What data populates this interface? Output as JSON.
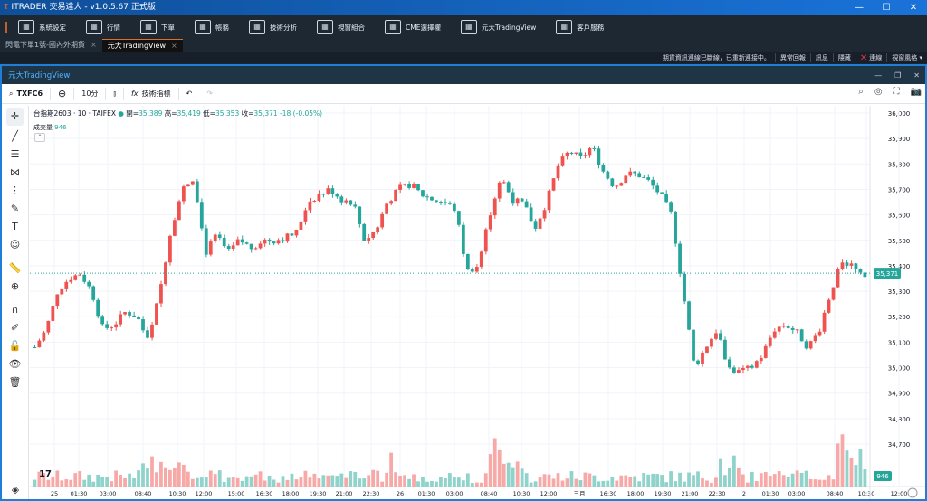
{
  "window": {
    "title": "ITRADER 交易達人 - v1.0.5.67 正式版"
  },
  "menu": [
    {
      "label": "系統設定",
      "icon": "gear-icon"
    },
    {
      "label": "行情",
      "icon": "monitor-chart-icon"
    },
    {
      "label": "下單",
      "icon": "order-icon"
    },
    {
      "label": "帳務",
      "icon": "calculator-icon"
    },
    {
      "label": "技術分析",
      "icon": "magnifier-chart-icon"
    },
    {
      "label": "視窗組合",
      "icon": "window-add-icon"
    },
    {
      "label": "CME選擇權",
      "icon": "bar-chart-icon"
    },
    {
      "label": "元大TradingView",
      "icon": "tradingview-icon"
    },
    {
      "label": "客戶服務",
      "icon": "help-chat-icon"
    }
  ],
  "tabs": [
    {
      "label": "閃電下單1號-國內外期貨"
    },
    {
      "label": "元大TradingView"
    }
  ],
  "status": {
    "message": "期貨資訊連線已斷線，已重新連接中。",
    "report": "異常回報",
    "info": "訊息",
    "hide": "隱藏",
    "connect": "連線",
    "style": "視窗風格 ▾"
  },
  "panel": {
    "title": "元大TradingView"
  },
  "toolbar": {
    "symbol": "TXFC6",
    "interval": "10分",
    "indicators": "技術指標"
  },
  "legend": {
    "name": "台指期2603 · 10 · TAIFEX",
    "open_label": "開",
    "open": "35,389",
    "high_label": "高",
    "high": "35,419",
    "low_label": "低",
    "low": "35,353",
    "close_label": "收",
    "close": "35,371",
    "change": "-18 (-0.05%)",
    "volume_label": "成交量",
    "volume": "946"
  },
  "colors": {
    "up": "#ef5350",
    "down": "#26a69a",
    "accent": "#1f7fd6"
  },
  "chart_data": {
    "type": "candlestick",
    "price_axis": [
      "36,000",
      "35,900",
      "35,800",
      "35,700",
      "35,600",
      "35,500",
      "35,400",
      "35,300",
      "35,200",
      "35,100",
      "35,000",
      "34,900",
      "34,800",
      "34,700"
    ],
    "ylim": [
      34700,
      36000
    ],
    "last_price": "35,371",
    "last_volume": "946",
    "time_axis": [
      "25",
      "01:30",
      "03:00",
      "08:40",
      "10:30",
      "12:00",
      "15:00",
      "16:30",
      "18:00",
      "19:30",
      "21:00",
      "22:30",
      "26",
      "01:30",
      "03:00",
      "08:40",
      "10:30",
      "12:00",
      "三月",
      "16:30",
      "18:00",
      "19:30",
      "21:00",
      "22:30",
      "2",
      "01:30",
      "03:00",
      "08:40",
      "10:30",
      "12:00"
    ],
    "price_path": [
      35080,
      35150,
      35300,
      35350,
      35370,
      35300,
      35150,
      35170,
      35220,
      35200,
      35100,
      35300,
      35550,
      35700,
      35750,
      35450,
      35520,
      35450,
      35500,
      35470,
      35500,
      35500,
      35510,
      35530,
      35650,
      35680,
      35700,
      35660,
      35650,
      35500,
      35540,
      35650,
      35700,
      35720,
      35680,
      35660,
      35650,
      35620,
      35380,
      35400,
      35600,
      35750,
      35660,
      35640,
      35550,
      35650,
      35790,
      35850,
      35820,
      35870,
      35770,
      35710,
      35760,
      35760,
      35730,
      35680,
      35600,
      35300,
      35000,
      35080,
      35150,
      35000,
      34980,
      35000,
      35050,
      35150,
      35170,
      35140,
      35080,
      35150,
      35300,
      35420,
      35400,
      35371
    ]
  }
}
